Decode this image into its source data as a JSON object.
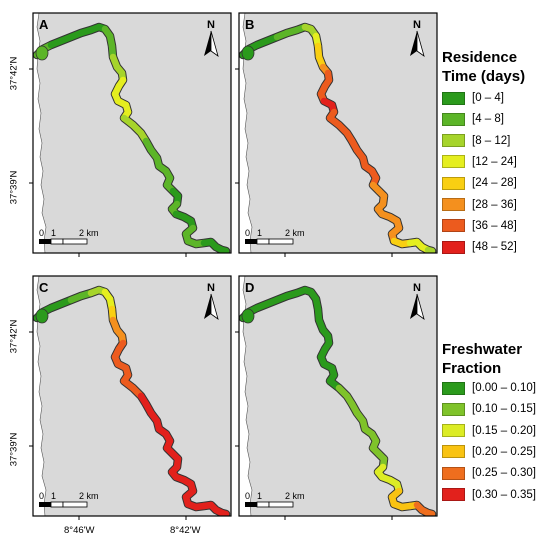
{
  "panels": [
    {
      "label": "A",
      "legend": "residence",
      "colors": [
        1,
        1,
        0,
        0,
        0,
        0,
        0,
        0,
        1,
        1,
        1,
        2,
        2,
        2,
        3,
        3,
        3,
        3,
        3,
        3,
        2,
        2,
        2,
        1,
        1,
        1,
        1,
        1,
        1,
        1,
        0,
        0,
        1,
        1,
        0,
        0,
        0,
        1,
        1,
        1,
        1,
        0,
        0,
        0,
        0,
        0
      ]
    },
    {
      "label": "B",
      "legend": "residence",
      "colors": [
        0,
        0,
        0,
        0,
        1,
        1,
        1,
        2,
        2,
        3,
        4,
        4,
        5,
        6,
        6,
        6,
        6,
        7,
        7,
        6,
        6,
        6,
        6,
        6,
        6,
        6,
        6,
        6,
        6,
        5,
        5,
        5,
        5,
        5,
        5,
        5,
        5,
        5,
        5,
        4,
        4,
        3,
        3,
        3,
        2,
        2
      ]
    },
    {
      "label": "C",
      "legend": "residence",
      "colors": [
        0,
        0,
        0,
        0,
        1,
        1,
        2,
        2,
        3,
        3,
        4,
        5,
        5,
        5,
        6,
        6,
        6,
        6,
        6,
        6,
        6,
        6,
        7,
        7,
        7,
        7,
        7,
        7,
        7,
        7,
        7,
        7,
        7,
        7,
        7,
        7,
        7,
        7,
        7,
        7,
        7,
        7,
        7,
        7,
        7,
        7
      ]
    },
    {
      "label": "D",
      "legend": "freshwater",
      "colors": [
        0,
        0,
        0,
        0,
        0,
        0,
        0,
        0,
        0,
        0,
        0,
        0,
        0,
        0,
        0,
        0,
        0,
        0,
        0,
        0,
        0,
        1,
        1,
        1,
        1,
        1,
        1,
        1,
        1,
        1,
        1,
        1,
        2,
        2,
        2,
        2,
        2,
        3,
        3,
        3,
        3,
        3,
        4,
        4,
        4,
        4
      ]
    }
  ],
  "north_label": "N",
  "scalebar": {
    "labels": [
      "0",
      "1",
      "2 km"
    ]
  },
  "axes": {
    "lat_labels": [
      "37°42'N",
      "37°39'N"
    ],
    "lon_labels": [
      "8°46'W",
      "8°42'W"
    ]
  },
  "legends": {
    "residence": {
      "title_line1": "Residence",
      "title_line2": "Time (days)",
      "items": [
        {
          "label": "[0 – 4]",
          "color": "#2b9a1c"
        },
        {
          "label": "[4 – 8]",
          "color": "#5cb528"
        },
        {
          "label": "[8 – 12]",
          "color": "#a6d42b"
        },
        {
          "label": "[12 – 24]",
          "color": "#e5ee1f"
        },
        {
          "label": "[24 – 28]",
          "color": "#f9cf12"
        },
        {
          "label": "[28 – 36]",
          "color": "#f4901e"
        },
        {
          "label": "[36 – 48]",
          "color": "#ec5b1e"
        },
        {
          "label": "[48 – 52]",
          "color": "#e2211c"
        }
      ]
    },
    "freshwater": {
      "title_line1": "Freshwater",
      "title_line2": "Fraction",
      "items": [
        {
          "label": "[0.00 – 0.10]",
          "color": "#2b9a1c"
        },
        {
          "label": "[0.10 – 0.15]",
          "color": "#7fc32a"
        },
        {
          "label": "[0.15 – 0.20]",
          "color": "#dcec25"
        },
        {
          "label": "[0.20 – 0.25]",
          "color": "#f9c312"
        },
        {
          "label": "[0.25 – 0.30]",
          "color": "#ef6e1e"
        },
        {
          "label": "[0.30 – 0.35]",
          "color": "#e2211c"
        }
      ]
    }
  },
  "colors": {
    "land": "#d9d9d9",
    "frame": "#000000"
  }
}
